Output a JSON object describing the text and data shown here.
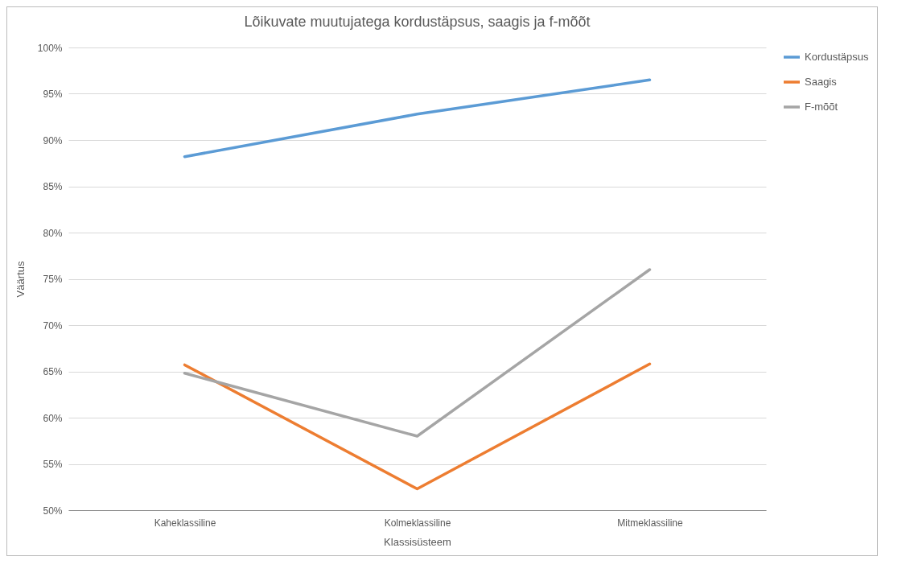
{
  "chart_data": {
    "type": "line",
    "title": "Lõikuvate muutujatega kordustäpsus, saagis ja f-mõõt",
    "xlabel": "Klassisüsteem",
    "ylabel": "Väärtus",
    "categories": [
      "Kaheklassiline",
      "Kolmeklassiline",
      "Mitmeklassiline"
    ],
    "series": [
      {
        "name": "Kordustäpsus",
        "color": "#5b9bd5",
        "values": [
          88.2,
          92.8,
          96.5
        ]
      },
      {
        "name": "Saagis",
        "color": "#ed7d31",
        "values": [
          65.7,
          52.3,
          65.8
        ]
      },
      {
        "name": "F-mõõt",
        "color": "#a5a5a5",
        "values": [
          64.8,
          58.0,
          76.0
        ]
      }
    ],
    "ylim": [
      50,
      100
    ],
    "yticks": [
      {
        "value": 50,
        "label": "50%"
      },
      {
        "value": 55,
        "label": "55%"
      },
      {
        "value": 60,
        "label": "60%"
      },
      {
        "value": 65,
        "label": "65%"
      },
      {
        "value": 70,
        "label": "70%"
      },
      {
        "value": 75,
        "label": "75%"
      },
      {
        "value": 80,
        "label": "80%"
      },
      {
        "value": 85,
        "label": "85%"
      },
      {
        "value": 90,
        "label": "90%"
      },
      {
        "value": 95,
        "label": "95%"
      },
      {
        "value": 100,
        "label": "100%"
      }
    ],
    "grid": "y",
    "legend": "right",
    "marker": "none",
    "line_style": "solid"
  }
}
